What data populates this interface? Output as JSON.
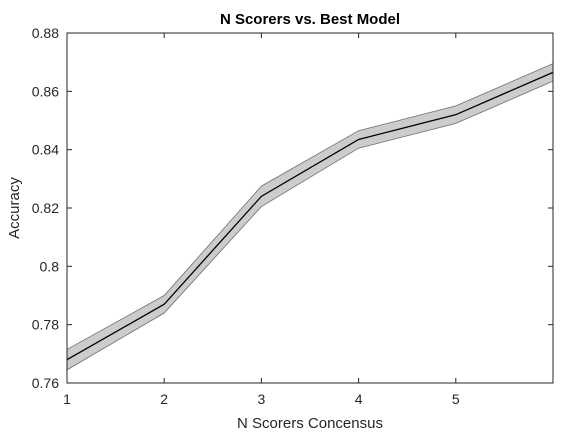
{
  "chart_data": {
    "type": "line",
    "title": "N Scorers vs. Best Model",
    "xlabel": "N Scorers Concensus",
    "ylabel": "Accuracy",
    "xlim": [
      1,
      6
    ],
    "ylim": [
      0.76,
      0.88
    ],
    "xticks": [
      1,
      2,
      3,
      4,
      5
    ],
    "xtick_labels": [
      "1",
      "2",
      "3",
      "4",
      "5"
    ],
    "yticks": [
      0.76,
      0.78,
      0.8,
      0.82,
      0.84,
      0.86,
      0.88
    ],
    "ytick_labels": [
      "0.76",
      "0.78",
      "0.8",
      "0.82",
      "0.84",
      "0.86",
      "0.88"
    ],
    "grid": false,
    "series": [
      {
        "x": [
          1,
          2,
          3,
          4,
          5,
          6
        ],
        "values": [
          0.768,
          0.787,
          0.824,
          0.8435,
          0.852,
          0.8665
        ],
        "upper": [
          0.7715,
          0.79,
          0.8275,
          0.8465,
          0.855,
          0.8695
        ],
        "lower": [
          0.7645,
          0.784,
          0.8205,
          0.8405,
          0.849,
          0.8635
        ],
        "line_color": "#000000",
        "band_color": "#cccccc"
      }
    ]
  }
}
